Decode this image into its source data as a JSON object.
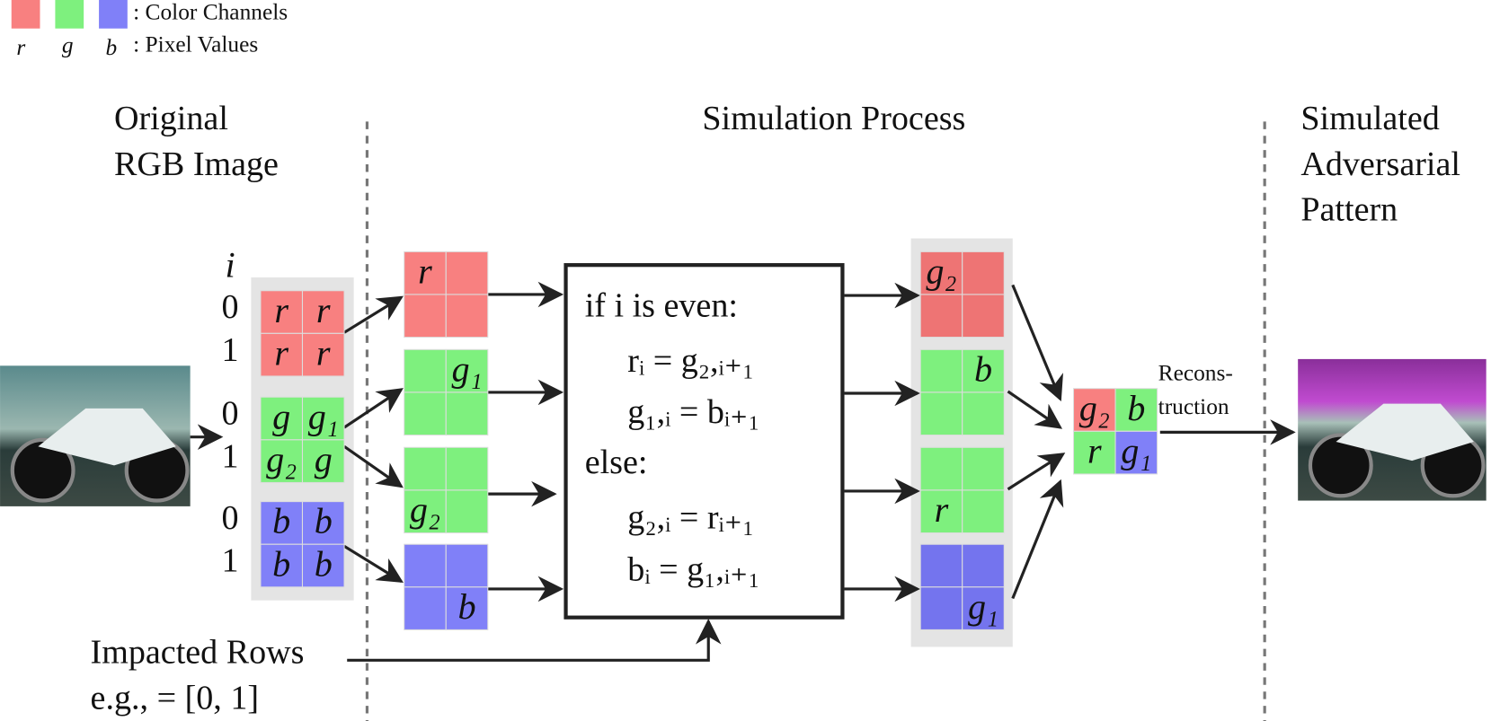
{
  "legend": {
    "channels_label": ": Color Channels",
    "values_label": ": Pixel Values",
    "symbols": [
      "r",
      "g",
      "b"
    ]
  },
  "headers": {
    "original": [
      "Original",
      "RGB Image"
    ],
    "simulation": "Simulation Process",
    "simulated": [
      "Simulated",
      "Adversarial",
      "Pattern"
    ]
  },
  "index_header": "i",
  "row_indices": [
    "0",
    "1",
    "0",
    "1",
    "0",
    "1"
  ],
  "original_cells": [
    [
      "r",
      "r"
    ],
    [
      "r",
      "r"
    ],
    [
      "g",
      "g₁"
    ],
    [
      "g₂",
      "g"
    ],
    [
      "b",
      "b"
    ],
    [
      "b",
      "b"
    ]
  ],
  "channel_splits": [
    "r",
    "g₁",
    "g₂",
    "b"
  ],
  "process": {
    "condition": "if i is even:",
    "even": [
      "rᵢ = g₂,ᵢ₊₁",
      "g₁,ᵢ = bᵢ₊₁"
    ],
    "otherwise": "else:",
    "odd": [
      "g₂,ᵢ = rᵢ₊₁",
      "bᵢ = g₁,ᵢ₊₁"
    ]
  },
  "shifted_channels": [
    "g₂",
    "b",
    "r",
    "g₁"
  ],
  "reconstruction_cells": [
    "g₂",
    "b",
    "r",
    "g₁"
  ],
  "reconstruction_label": [
    "Recons-",
    "truction"
  ],
  "impacted_rows": {
    "label": "Impacted Rows",
    "example": "e.g., = [0, 1]"
  }
}
